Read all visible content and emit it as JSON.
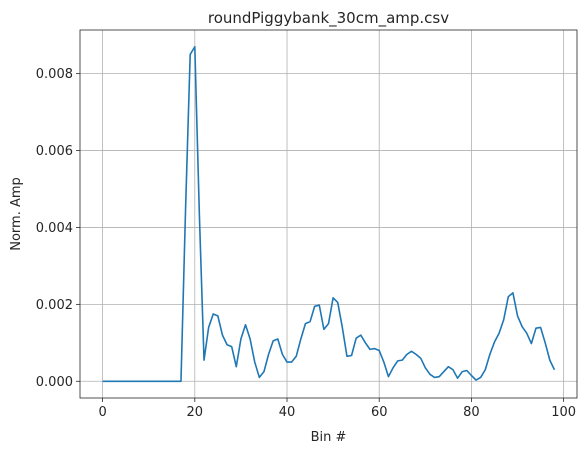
{
  "chart_data": {
    "type": "line",
    "title": "roundPiggybank_30cm_amp.csv",
    "xlabel": "Bin #",
    "ylabel": "Norm. Amp",
    "xlim": [
      -4.9,
      102.9
    ],
    "ylim": [
      -0.000435,
      0.009135
    ],
    "x_ticks": [
      0,
      20,
      40,
      60,
      80,
      100
    ],
    "x_tick_labels": [
      "0",
      "20",
      "40",
      "60",
      "80",
      "100"
    ],
    "y_ticks": [
      0.0,
      0.002,
      0.004,
      0.006,
      0.008
    ],
    "y_tick_labels": [
      "0.000",
      "0.002",
      "0.004",
      "0.006",
      "0.008"
    ],
    "grid": true,
    "line_color": "#1f77b4",
    "series": [
      {
        "x": [
          0,
          1,
          2,
          3,
          4,
          5,
          6,
          7,
          8,
          9,
          10,
          11,
          12,
          13,
          14,
          15,
          16,
          17,
          18,
          19,
          20,
          21,
          22,
          23,
          24,
          25,
          26,
          27,
          28,
          29,
          30,
          31,
          32,
          33,
          34,
          35,
          36,
          37,
          38,
          39,
          40,
          41,
          42,
          43,
          44,
          45,
          46,
          47,
          48,
          49,
          50,
          51,
          52,
          53,
          54,
          55,
          56,
          57,
          58,
          59,
          60,
          61,
          62,
          63,
          64,
          65,
          66,
          67,
          68,
          69,
          70,
          71,
          72,
          73,
          74,
          75,
          76,
          77,
          78,
          79,
          80,
          81,
          82,
          83,
          84,
          85,
          86,
          87,
          88,
          89,
          90,
          91,
          92,
          93,
          94,
          95,
          96,
          97,
          98
        ],
        "values": [
          0,
          0,
          0,
          0,
          0,
          0,
          0,
          0,
          0,
          0,
          0,
          0,
          0,
          0,
          0,
          0,
          0,
          0,
          0.0045,
          0.0085,
          0.0087,
          0.0043,
          0.00055,
          0.0014,
          0.00175,
          0.0017,
          0.0012,
          0.00095,
          0.0009,
          0.00038,
          0.0011,
          0.00147,
          0.0011,
          0.0005,
          0.0001,
          0.00025,
          0.0007,
          0.00105,
          0.0011,
          0.0007,
          0.0005,
          0.0005,
          0.00065,
          0.0011,
          0.0015,
          0.00155,
          0.00195,
          0.00198,
          0.00135,
          0.0015,
          0.00217,
          0.00205,
          0.0014,
          0.00065,
          0.00067,
          0.00112,
          0.0012,
          0.001,
          0.00083,
          0.00085,
          0.0008,
          0.0005,
          0.00012,
          0.00035,
          0.00053,
          0.00055,
          0.0007,
          0.00078,
          0.0007,
          0.0006,
          0.00035,
          0.00018,
          0.0001,
          0.00012,
          0.00025,
          0.00038,
          0.0003,
          8e-05,
          0.00025,
          0.00028,
          0.00015,
          3e-05,
          0.0001,
          0.0003,
          0.0007,
          0.00102,
          0.00125,
          0.0016,
          0.0022,
          0.0023,
          0.0017,
          0.00142,
          0.00125,
          0.00098,
          0.00138,
          0.0014,
          0.001,
          0.00055,
          0.0003
        ]
      }
    ]
  }
}
